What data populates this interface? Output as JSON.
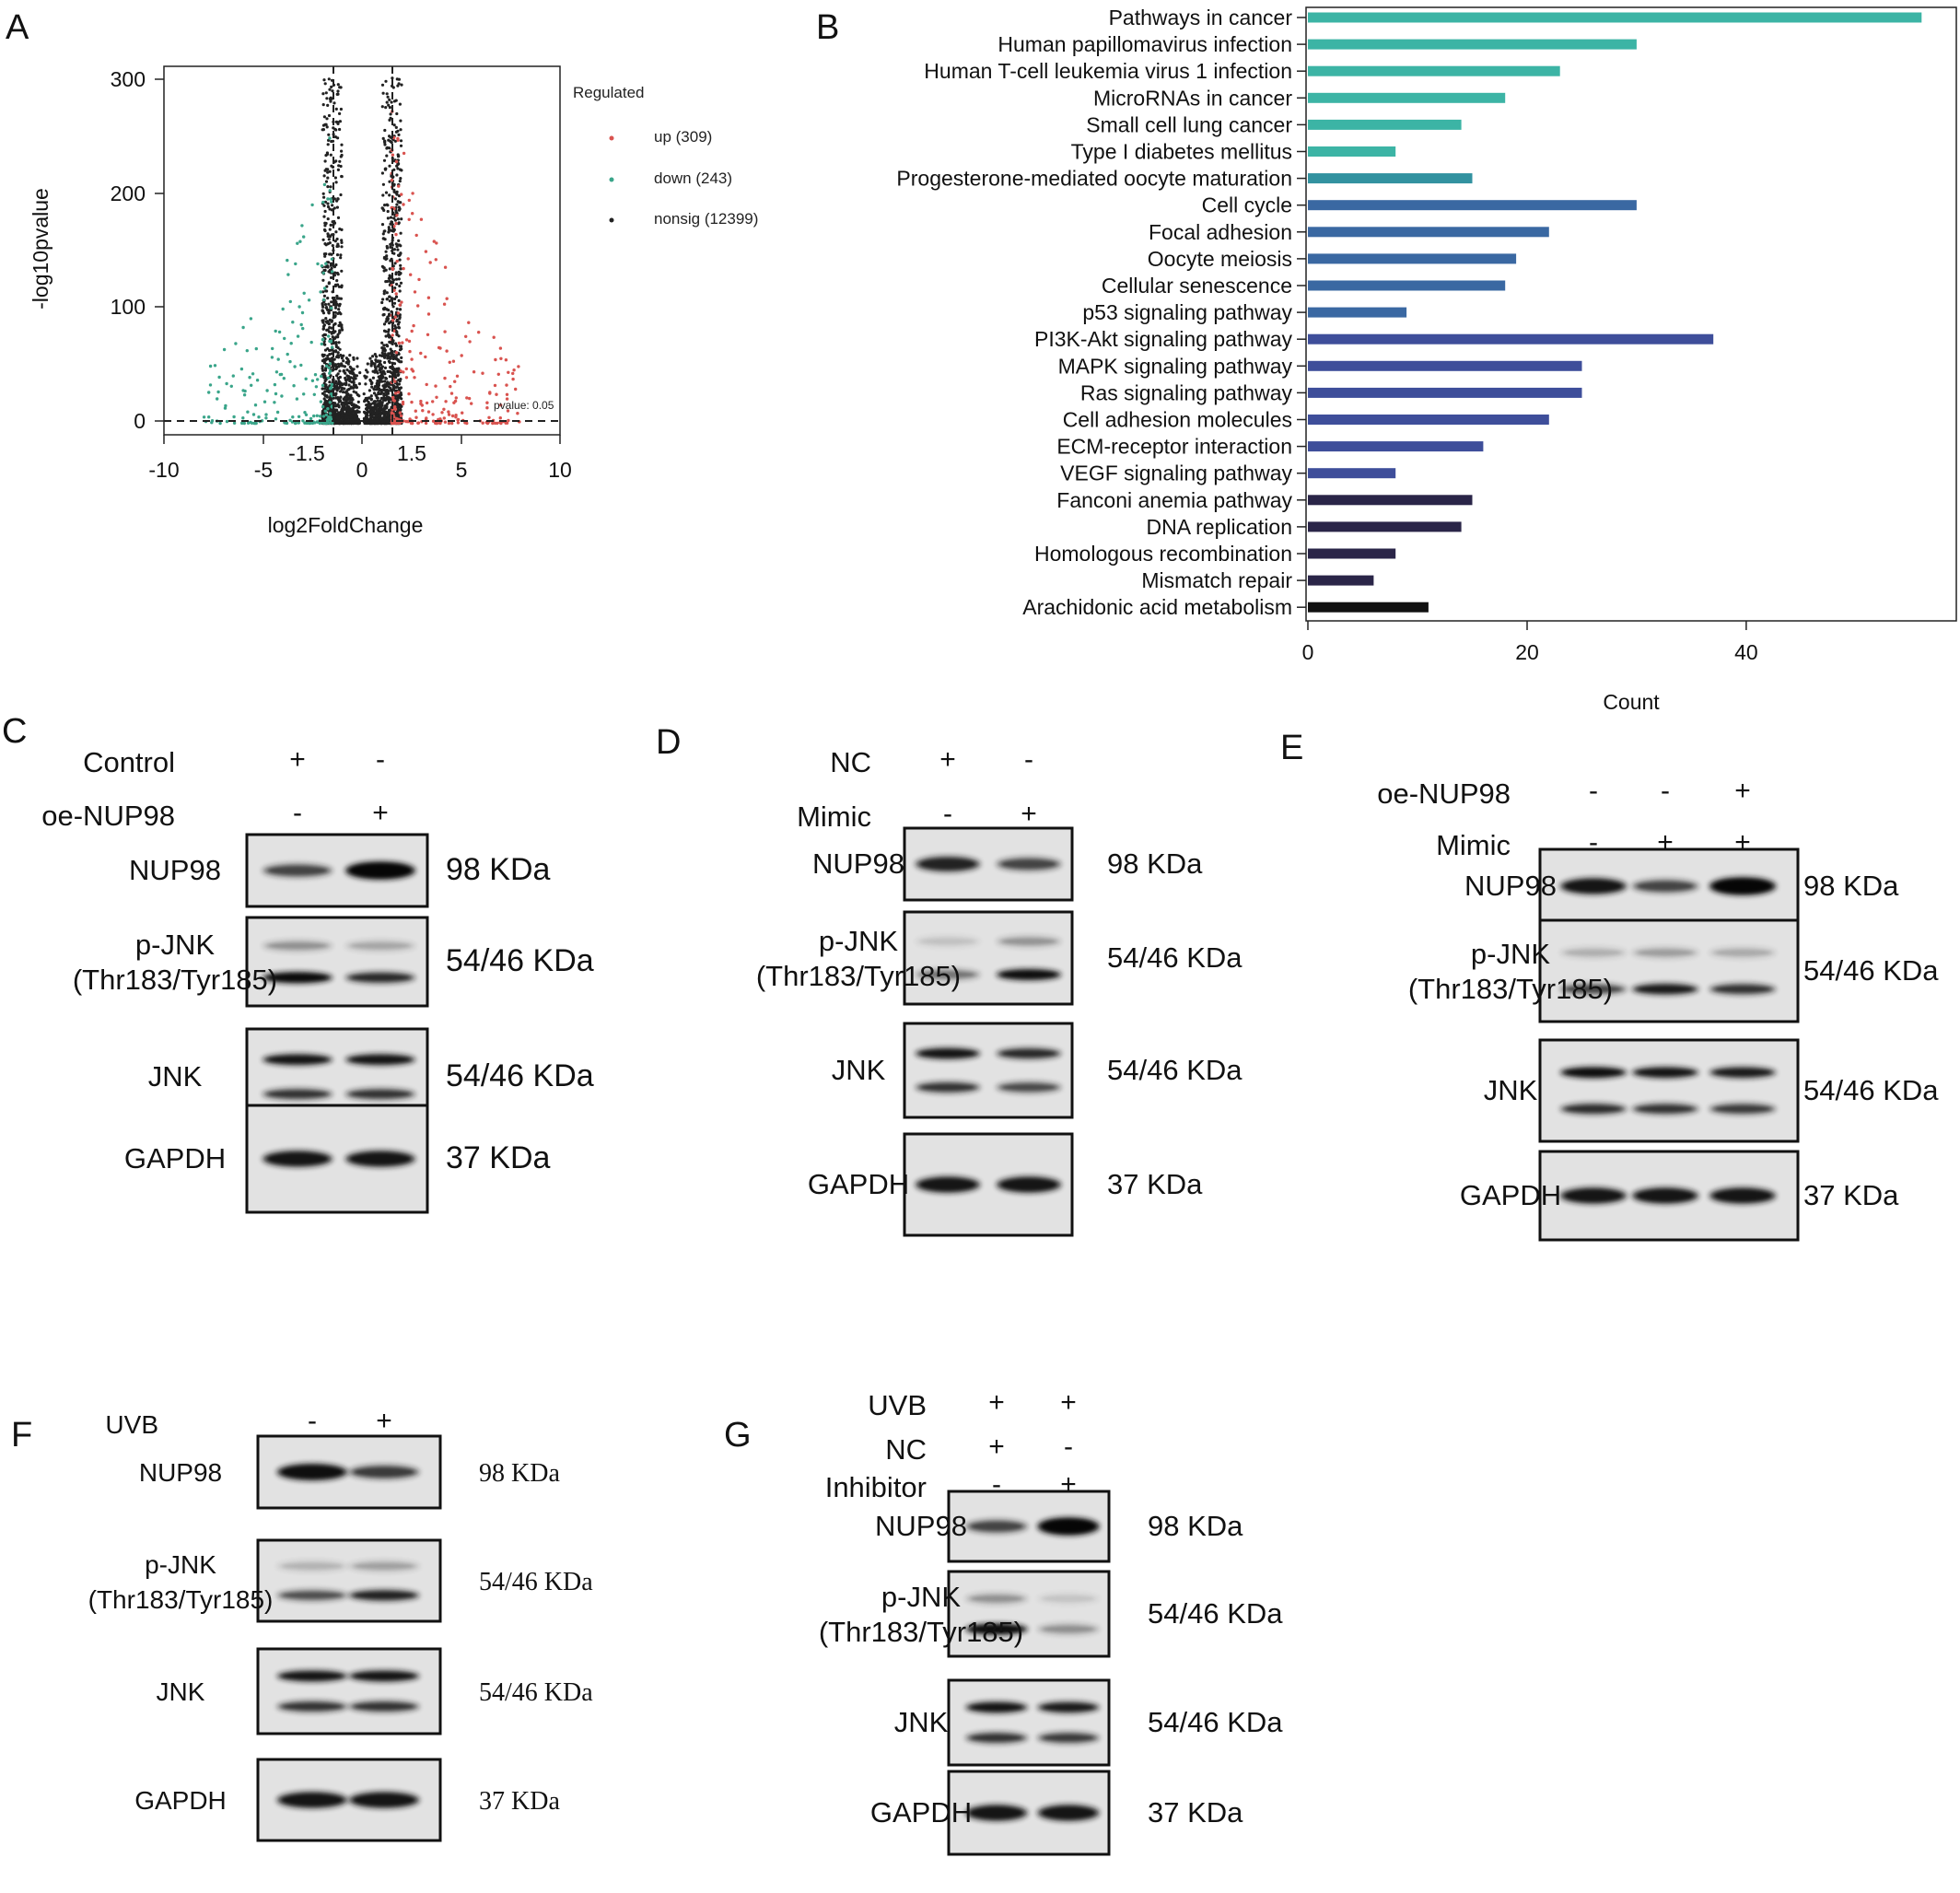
{
  "panels": {
    "A": "A",
    "B": "B",
    "C": "C",
    "D": "D",
    "E": "E",
    "F": "F",
    "G": "G"
  },
  "colors": {
    "up": "#d9534f",
    "down": "#3aa58a",
    "nonsig": "#222222"
  },
  "chart_data": [
    {
      "type": "scatter",
      "panel": "A",
      "xlabel": "log2FoldChange",
      "ylabel": "-log10pvalue",
      "xlim": [
        -10,
        10
      ],
      "ylim": [
        -10,
        310
      ],
      "xticks": [
        "-10",
        "-5",
        "0",
        "5",
        "10"
      ],
      "extra_xticks": [
        "-1.5",
        "1.5"
      ],
      "yticks": [
        "0",
        "100",
        "200",
        "300"
      ],
      "threshold_x": [
        -1.5,
        1.5
      ],
      "threshold_y": 0,
      "threshold_label": "pvalue: 0.05",
      "legend_title": "Regulated",
      "legend_placement": "right",
      "series": [
        {
          "name": "up (309)",
          "count": 309
        },
        {
          "name": "down (243)",
          "count": 243
        },
        {
          "name": "nonsig (12399)",
          "count": 12399
        }
      ]
    },
    {
      "type": "bar",
      "panel": "B",
      "orientation": "horizontal",
      "xlabel": "Count",
      "xticks": [
        "0",
        "20",
        "40"
      ],
      "xlim": [
        0,
        59
      ],
      "categories": [
        "Pathways in cancer",
        "Human papillomavirus infection",
        "Human T-cell leukemia virus 1 infection",
        "MicroRNAs in cancer",
        "Small cell lung cancer",
        "Type I diabetes mellitus",
        "Progesterone-mediated oocyte maturation",
        "Cell cycle",
        "Focal adhesion",
        "Oocyte meiosis",
        "Cellular senescence",
        "p53 signaling pathway",
        "PI3K-Akt signaling pathway",
        "MAPK signaling pathway",
        "Ras signaling pathway",
        "Cell adhesion molecules",
        "ECM-receptor interaction",
        "VEGF signaling pathway",
        "Fanconi anemia pathway",
        "DNA replication",
        "Homologous recombination",
        "Mismatch repair",
        "Arachidonic acid metabolism"
      ],
      "values": [
        56,
        30,
        23,
        18,
        14,
        8,
        15,
        30,
        22,
        19,
        18,
        9,
        37,
        25,
        25,
        22,
        16,
        8,
        15,
        14,
        8,
        6,
        11
      ],
      "bar_colors": [
        "#3cb4a5",
        "#3cb4a5",
        "#3cb4a5",
        "#3cb4a5",
        "#3cb4a5",
        "#3cb4a5",
        "#3292a0",
        "#3a68a2",
        "#3a68a2",
        "#3a68a2",
        "#3a68a2",
        "#3a68a2",
        "#3e4e9a",
        "#3e4e9a",
        "#3e4e9a",
        "#3e4e9a",
        "#3e4e9a",
        "#3e4e9a",
        "#2a2548",
        "#2a2548",
        "#2a2548",
        "#2a2548",
        "#111111"
      ]
    }
  ],
  "blots": {
    "C": {
      "conditions": [
        {
          "name": "Control",
          "signs": [
            "+",
            "-"
          ]
        },
        {
          "name": "oe-NUP98",
          "signs": [
            "-",
            "+"
          ]
        }
      ],
      "rows": [
        {
          "label": [
            "NUP98"
          ],
          "kda": "98 KDa",
          "bands": [
            0.55,
            1.0
          ]
        },
        {
          "label": [
            "p-JNK",
            "(Thr183/Tyr185)"
          ],
          "kda": "54/46 KDa",
          "bands": [
            0.95,
            0.7
          ]
        },
        {
          "label": [
            "JNK"
          ],
          "kda": "54/46 KDa",
          "bands": [
            0.85,
            0.85
          ]
        },
        {
          "label": [
            "GAPDH"
          ],
          "kda": "37 KDa",
          "bands": [
            0.85,
            0.85
          ]
        }
      ]
    },
    "D": {
      "conditions": [
        {
          "name": "NC",
          "signs": [
            "+",
            "-"
          ]
        },
        {
          "name": "Mimic",
          "signs": [
            "-",
            "+"
          ]
        }
      ],
      "rows": [
        {
          "label": [
            "NUP98"
          ],
          "kda": "98 KDa",
          "bands": [
            0.75,
            0.55
          ]
        },
        {
          "label": [
            "p-JNK",
            "(Thr183/Tyr185)"
          ],
          "kda": "54/46 KDa",
          "bands": [
            0.35,
            0.9
          ]
        },
        {
          "label": [
            "JNK"
          ],
          "kda": "54/46 KDa",
          "bands": [
            0.85,
            0.7
          ]
        },
        {
          "label": [
            "GAPDH"
          ],
          "kda": "37 KDa",
          "bands": [
            0.85,
            0.85
          ]
        }
      ]
    },
    "E": {
      "conditions": [
        {
          "name": "oe-NUP98",
          "signs": [
            "-",
            "-",
            "+"
          ]
        },
        {
          "name": "Mimic",
          "signs": [
            "-",
            "+",
            "+"
          ]
        }
      ],
      "rows": [
        {
          "label": [
            "NUP98"
          ],
          "kda": "98 KDa",
          "bands": [
            0.85,
            0.55,
            1.0
          ]
        },
        {
          "label": [
            "p-JNK",
            "(Thr183/Tyr185)"
          ],
          "kda": "54/46 KDa",
          "bands": [
            0.55,
            0.8,
            0.65
          ]
        },
        {
          "label": [
            "JNK"
          ],
          "kda": "54/46 KDa",
          "bands": [
            0.9,
            0.85,
            0.8
          ]
        },
        {
          "label": [
            "GAPDH"
          ],
          "kda": "37 KDa",
          "bands": [
            0.85,
            0.85,
            0.85
          ]
        }
      ]
    },
    "F": {
      "conditions": [
        {
          "name": "UVB",
          "signs": [
            "-",
            "+"
          ]
        }
      ],
      "rows": [
        {
          "label": [
            "NUP98"
          ],
          "kda": "98 KDa",
          "bands": [
            0.9,
            0.6
          ]
        },
        {
          "label": [
            "p-JNK",
            "(Thr183/Tyr185)"
          ],
          "kda": "54/46 KDa",
          "bands": [
            0.5,
            0.75
          ]
        },
        {
          "label": [
            "JNK"
          ],
          "kda": "54/46 KDa",
          "bands": [
            0.85,
            0.85
          ]
        },
        {
          "label": [
            "GAPDH"
          ],
          "kda": "37 KDa",
          "bands": [
            0.85,
            0.85
          ]
        }
      ]
    },
    "G": {
      "conditions": [
        {
          "name": "UVB",
          "signs": [
            "+",
            "+"
          ]
        },
        {
          "name": "NC",
          "signs": [
            "+",
            "-"
          ]
        },
        {
          "name": "Inhibitor",
          "signs": [
            "-",
            "+"
          ]
        }
      ],
      "rows": [
        {
          "label": [
            "NUP98"
          ],
          "kda": "98 KDa",
          "bands": [
            0.55,
            1.0
          ]
        },
        {
          "label": [
            "p-JNK",
            "(Thr183/Tyr185)"
          ],
          "kda": "54/46 KDa",
          "bands": [
            0.95,
            0.25
          ]
        },
        {
          "label": [
            "JNK"
          ],
          "kda": "54/46 KDa",
          "bands": [
            0.85,
            0.8
          ]
        },
        {
          "label": [
            "GAPDH"
          ],
          "kda": "37 KDa",
          "bands": [
            0.85,
            0.85
          ]
        }
      ]
    }
  }
}
